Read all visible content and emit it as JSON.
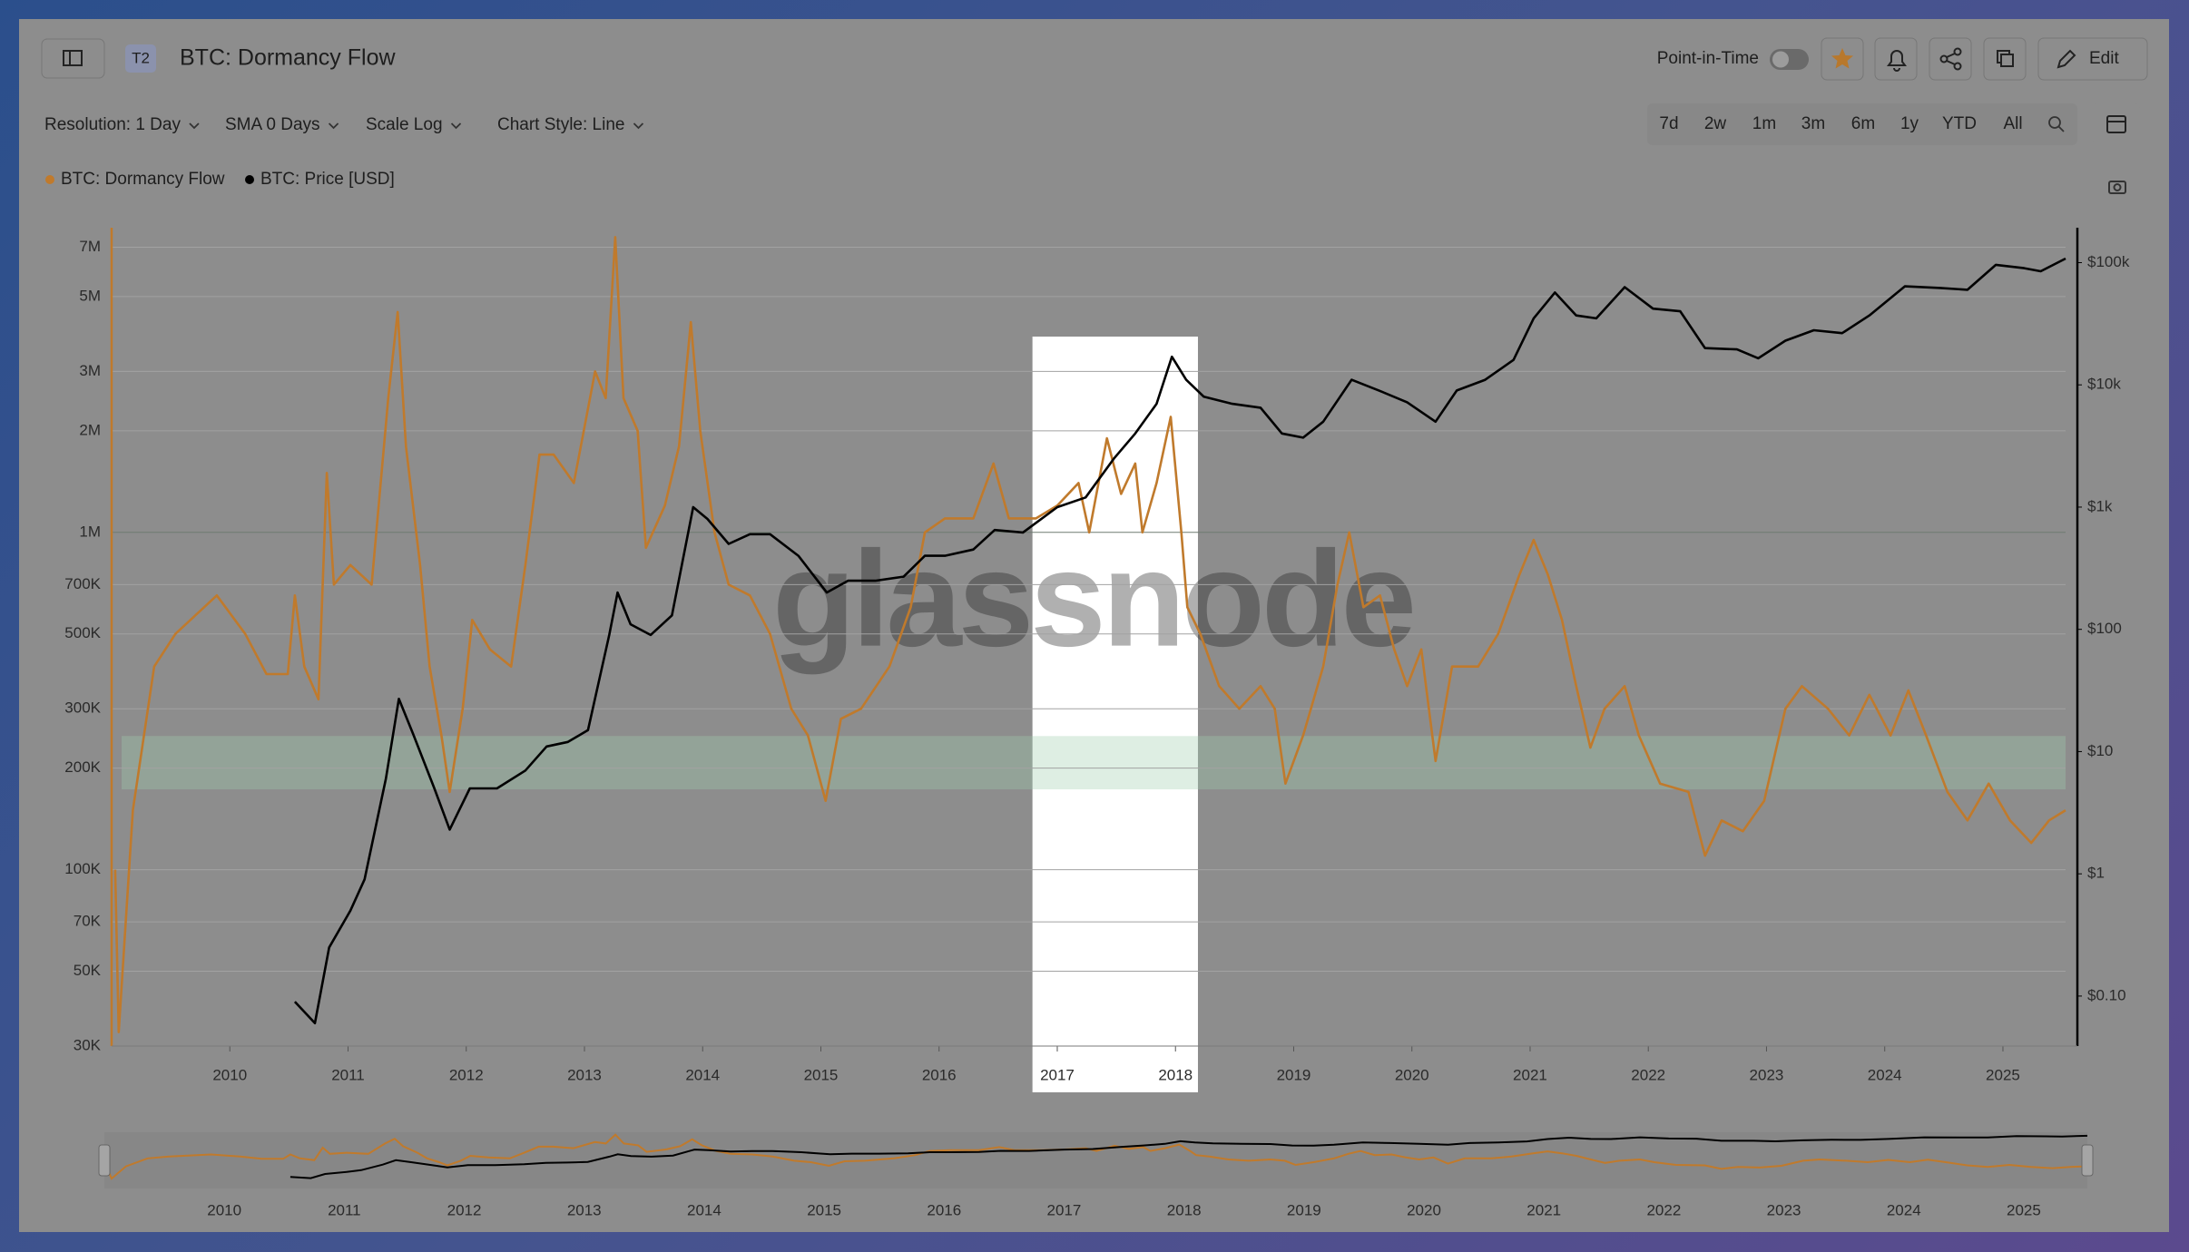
{
  "header": {
    "badge": "T2",
    "title": "BTC: Dormancy Flow",
    "point_in_time": "Point-in-Time",
    "edit": "Edit"
  },
  "toolbar": {
    "options": [
      "Resolution: 1 Day",
      "SMA 0 Days",
      "Scale Log",
      "Chart Style: Line"
    ],
    "ranges": [
      "7d",
      "2w",
      "1m",
      "3m",
      "6m",
      "1y",
      "YTD",
      "All"
    ]
  },
  "watermark": "glassnode",
  "chart_data": {
    "type": "line",
    "log_scale": true,
    "grid": true,
    "legend": "top-left",
    "xlim": [
      2009.0,
      2025.53
    ],
    "xticks": [
      2010,
      2011,
      2012,
      2013,
      2014,
      2015,
      2016,
      2017,
      2018,
      2019,
      2020,
      2021,
      2022,
      2023,
      2024,
      2025
    ],
    "ylim": [
      30000,
      8000000
    ],
    "yticks": [
      {
        "value": 30000,
        "label": "30K"
      },
      {
        "value": 50000,
        "label": "50K"
      },
      {
        "value": 70000,
        "label": "70K"
      },
      {
        "value": 100000,
        "label": "100K"
      },
      {
        "value": 200000,
        "label": "200K"
      },
      {
        "value": 300000,
        "label": "300K"
      },
      {
        "value": 500000,
        "label": "500K"
      },
      {
        "value": 700000,
        "label": "700K"
      },
      {
        "value": 1000000,
        "label": "1M"
      },
      {
        "value": 2000000,
        "label": "2M"
      },
      {
        "value": 3000000,
        "label": "3M"
      },
      {
        "value": 5000000,
        "label": "5M"
      },
      {
        "value": 7000000,
        "label": "7M"
      }
    ],
    "y2lim": [
      0.039,
      193000
    ],
    "y2ticks": [
      {
        "value": 0.1,
        "label": "$0.10"
      },
      {
        "value": 1,
        "label": "$1"
      },
      {
        "value": 10,
        "label": "$10"
      },
      {
        "value": 100,
        "label": "$100"
      },
      {
        "value": 1000,
        "label": "$1k"
      },
      {
        "value": 10000,
        "label": "$10k"
      },
      {
        "value": 100000,
        "label": "$100k"
      }
    ],
    "highlight_x": [
      2016.79,
      2018.19
    ],
    "band_y": [
      173000,
      249000
    ],
    "series": [
      {
        "name": "BTC: Dormancy Flow",
        "color": "#c07a2c",
        "x": [
          2009.03,
          2009.06,
          2009.18,
          2009.36,
          2009.54,
          2009.89,
          2010.13,
          2010.31,
          2010.49,
          2010.55,
          2010.63,
          2010.75,
          2010.82,
          2010.88,
          2011.02,
          2011.2,
          2011.34,
          2011.42,
          2011.49,
          2011.61,
          2011.69,
          2011.79,
          2011.86,
          2011.97,
          2012.05,
          2012.2,
          2012.38,
          2012.5,
          2012.62,
          2012.74,
          2012.91,
          2013.09,
          2013.18,
          2013.26,
          2013.33,
          2013.45,
          2013.52,
          2013.68,
          2013.8,
          2013.9,
          2013.98,
          2014.1,
          2014.22,
          2014.4,
          2014.57,
          2014.75,
          2014.89,
          2015.04,
          2015.17,
          2015.34,
          2015.58,
          2015.76,
          2015.88,
          2016.05,
          2016.29,
          2016.46,
          2016.59,
          2016.82,
          2017.0,
          2017.18,
          2017.27,
          2017.42,
          2017.54,
          2017.66,
          2017.72,
          2017.84,
          2017.96,
          2018.05,
          2018.1,
          2018.21,
          2018.37,
          2018.54,
          2018.72,
          2018.84,
          2018.93,
          2019.08,
          2019.25,
          2019.37,
          2019.47,
          2019.59,
          2019.73,
          2019.85,
          2019.96,
          2020.08,
          2020.2,
          2020.34,
          2020.56,
          2020.73,
          2020.91,
          2021.03,
          2021.15,
          2021.27,
          2021.39,
          2021.51,
          2021.63,
          2021.8,
          2021.92,
          2022.1,
          2022.34,
          2022.48,
          2022.62,
          2022.8,
          2022.98,
          2023.16,
          2023.3,
          2023.52,
          2023.7,
          2023.87,
          2024.05,
          2024.2,
          2024.35,
          2024.53,
          2024.7,
          2024.88,
          2025.06,
          2025.24,
          2025.39,
          2025.53
        ],
        "values": [
          100000,
          33000,
          150000,
          400000,
          500000,
          650000,
          500000,
          380000,
          380000,
          650000,
          400000,
          320000,
          1500000,
          700000,
          800000,
          700000,
          2500000,
          4500000,
          1800000,
          800000,
          400000,
          250000,
          170000,
          300000,
          550000,
          450000,
          400000,
          800000,
          1700000,
          1700000,
          1400000,
          3000000,
          2500000,
          7500000,
          2500000,
          2000000,
          900000,
          1200000,
          1800000,
          4200000,
          2000000,
          1000000,
          700000,
          650000,
          500000,
          300000,
          250000,
          160000,
          280000,
          300000,
          400000,
          600000,
          1000000,
          1100000,
          1100000,
          1600000,
          1100000,
          1100000,
          1200000,
          1400000,
          1000000,
          1900000,
          1300000,
          1600000,
          1000000,
          1400000,
          2200000,
          1000000,
          600000,
          500000,
          350000,
          300000,
          350000,
          300000,
          180000,
          250000,
          400000,
          700000,
          1000000,
          600000,
          650000,
          450000,
          350000,
          450000,
          210000,
          400000,
          400000,
          500000,
          750000,
          950000,
          750000,
          550000,
          350000,
          230000,
          300000,
          350000,
          250000,
          180000,
          170000,
          110000,
          140000,
          130000,
          160000,
          300000,
          350000,
          300000,
          250000,
          330000,
          250000,
          340000,
          250000,
          170000,
          140000,
          180000,
          140000,
          120000,
          140000,
          150000
        ]
      },
      {
        "name": "BTC: Price [USD]",
        "color": "#000000",
        "axis": "y2",
        "x": [
          2010.55,
          2010.72,
          2010.84,
          2011.02,
          2011.14,
          2011.32,
          2011.43,
          2011.55,
          2011.73,
          2011.86,
          2012.03,
          2012.26,
          2012.5,
          2012.68,
          2012.86,
          2013.03,
          2013.21,
          2013.28,
          2013.39,
          2013.56,
          2013.74,
          2013.92,
          2014.04,
          2014.22,
          2014.4,
          2014.57,
          2014.81,
          2015.05,
          2015.23,
          2015.46,
          2015.7,
          2015.88,
          2016.05,
          2016.29,
          2016.47,
          2016.71,
          2017.0,
          2017.24,
          2017.48,
          2017.66,
          2017.84,
          2017.97,
          2018.09,
          2018.24,
          2018.48,
          2018.72,
          2018.9,
          2019.08,
          2019.25,
          2019.49,
          2019.72,
          2019.96,
          2020.2,
          2020.38,
          2020.62,
          2020.86,
          2021.03,
          2021.21,
          2021.39,
          2021.56,
          2021.8,
          2022.04,
          2022.27,
          2022.48,
          2022.75,
          2022.93,
          2023.16,
          2023.4,
          2023.64,
          2023.87,
          2024.17,
          2024.47,
          2024.7,
          2024.94,
          2025.18,
          2025.32,
          2025.53
        ],
        "values": [
          0.09,
          0.06,
          0.25,
          0.5,
          0.9,
          6,
          27,
          14,
          5,
          2.3,
          5,
          5,
          7,
          11,
          12,
          15,
          90,
          200,
          110,
          90,
          130,
          1000,
          800,
          500,
          600,
          600,
          400,
          200,
          250,
          250,
          270,
          400,
          400,
          450,
          650,
          620,
          1000,
          1200,
          2500,
          4000,
          7000,
          17000,
          11000,
          8000,
          7000,
          6500,
          4000,
          3700,
          5000,
          11000,
          9000,
          7200,
          5000,
          9000,
          11000,
          16000,
          35000,
          57000,
          37000,
          35000,
          63000,
          42000,
          40000,
          20000,
          19500,
          16500,
          23000,
          28000,
          26500,
          37000,
          64000,
          62000,
          60000,
          96000,
          90000,
          85000,
          108000
        ]
      }
    ]
  }
}
